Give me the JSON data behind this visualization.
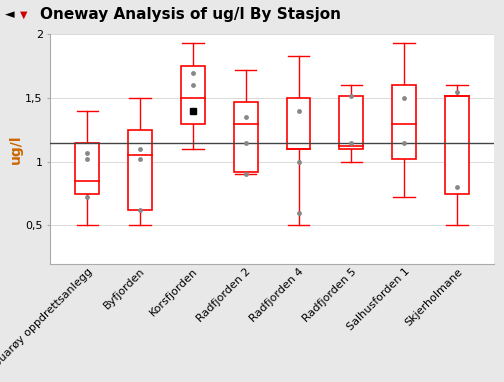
{
  "title": "Oneway Analysis of ug/l By Stasjon",
  "ylabel": "ug/l",
  "ylim": [
    0.2,
    2.0
  ],
  "yticks": [
    0.5,
    1.0,
    1.5,
    2.0
  ],
  "ytick_labels": [
    "0,5",
    "1",
    "1,5",
    "2"
  ],
  "grand_mean": 1.15,
  "stations": [
    "Buarøy oppdrettsanlegg",
    "Byfjorden",
    "Korsfjorden",
    "Radfjorden 2",
    "Radfjorden 4",
    "Radfjorden 5",
    "Salhusforden 1",
    "Skjerholmane"
  ],
  "boxes": [
    {
      "whislo": 0.5,
      "q1": 0.75,
      "med": 0.85,
      "q3": 1.15,
      "whishi": 1.4,
      "fliers": [
        0.72,
        1.02,
        1.07
      ],
      "mean": null
    },
    {
      "whislo": 0.5,
      "q1": 0.62,
      "med": 1.05,
      "q3": 1.25,
      "whishi": 1.5,
      "fliers": [
        0.62,
        1.02,
        1.1
      ],
      "mean": null
    },
    {
      "whislo": 1.1,
      "q1": 1.3,
      "med": 1.5,
      "q3": 1.75,
      "whishi": 1.93,
      "fliers": [
        1.6,
        1.7
      ],
      "mean": 1.4
    },
    {
      "whislo": 0.9,
      "q1": 0.92,
      "med": 1.3,
      "q3": 1.47,
      "whishi": 1.72,
      "fliers": [
        0.9,
        1.15,
        1.35
      ],
      "mean": null
    },
    {
      "whislo": 0.5,
      "q1": 1.1,
      "med": 1.1,
      "q3": 1.5,
      "whishi": 1.83,
      "fliers": [
        0.6,
        1.0,
        1.4
      ],
      "mean": null
    },
    {
      "whislo": 1.0,
      "q1": 1.1,
      "med": 1.12,
      "q3": 1.52,
      "whishi": 1.6,
      "fliers": [
        1.15,
        1.52
      ],
      "mean": null
    },
    {
      "whislo": 0.72,
      "q1": 1.02,
      "med": 1.3,
      "q3": 1.6,
      "whishi": 1.93,
      "fliers": [
        1.15,
        1.5
      ],
      "mean": null
    },
    {
      "whislo": 0.5,
      "q1": 0.75,
      "med": 1.52,
      "q3": 1.52,
      "whishi": 1.6,
      "fliers": [
        0.8,
        1.55
      ],
      "mean": null
    }
  ],
  "box_color": "#FF0000",
  "median_color": "#FF0000",
  "whisker_color": "#FF0000",
  "cap_color": "#FF0000",
  "flier_color": "#888888",
  "mean_color": "#000000",
  "background_color": "#e8e8e8",
  "plot_background": "#ffffff",
  "title_background": "#cccccc",
  "title_fontsize": 11,
  "axis_fontsize": 9,
  "tick_fontsize": 8
}
